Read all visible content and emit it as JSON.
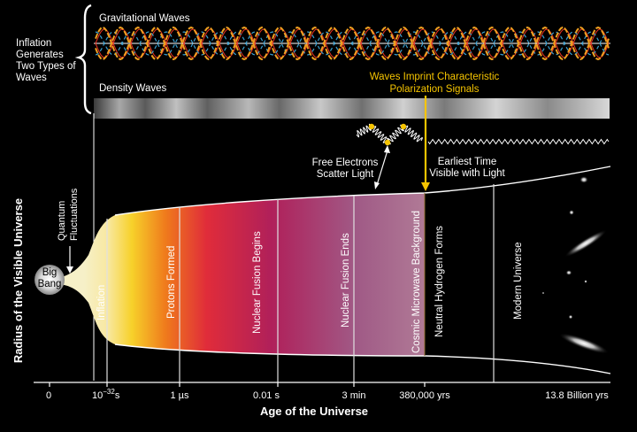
{
  "waves": {
    "intro": [
      "Inflation",
      "Generates",
      "Two Types of",
      "Waves"
    ],
    "gravitational": "Gravitational Waves",
    "density": "Density Waves",
    "imprint": [
      "Waves Imprint Characteristic",
      "Polarization Signals"
    ]
  },
  "labels": {
    "free_electrons": [
      "Free Electrons",
      "Scatter Light"
    ],
    "earliest_time": [
      "Earliest Time",
      "Visible with Light"
    ],
    "quantum": [
      "Quantum",
      "Fluctuations"
    ],
    "big_bang": [
      "Big",
      "Bang"
    ]
  },
  "epochs": [
    "Inflation",
    "Protons Formed",
    "Nuclear Fusion Begins",
    "Nuclear Fusion Ends",
    "Cosmic Microwave Background",
    "Neutral Hydrogen Forms",
    "Modern Universe"
  ],
  "axis": {
    "y_label": "Radius of the Visible Universe",
    "x_label": "Age of the Universe",
    "ticks": [
      {
        "base": "0",
        "sup": ""
      },
      {
        "base": "10",
        "sup": "−32",
        "suffix": "s"
      },
      {
        "base": "1 µs",
        "sup": ""
      },
      {
        "base": "0.01 s",
        "sup": ""
      },
      {
        "base": "3 min",
        "sup": ""
      },
      {
        "base": "380,000 yrs",
        "sup": ""
      },
      {
        "base": "13.8 Billion yrs",
        "sup": ""
      }
    ]
  },
  "colors": {
    "background": "#000000",
    "accent_yellow": "#f5c400",
    "gravitational_orange": "#f0a020",
    "gravitational_red": "#e03020",
    "gravitational_blue": "#3aa0d0"
  }
}
